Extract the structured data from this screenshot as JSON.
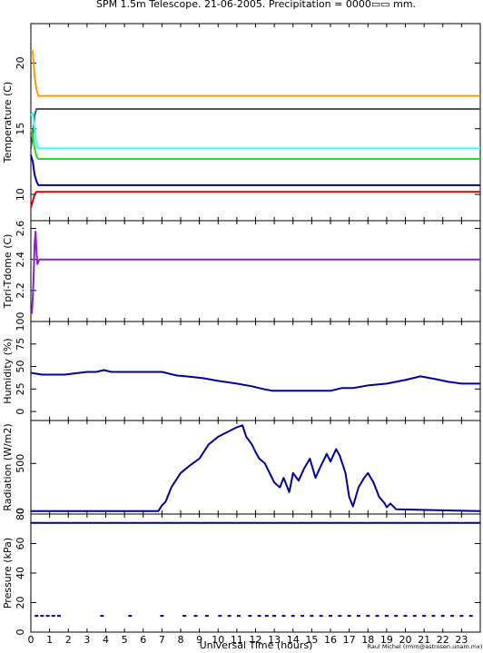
{
  "title": "SPM 1.5m Telescope. 21-06-2005. Precipitation = 0000▭▭ mm.",
  "credit": "Raul Michel (rmm@astrosen.unam.mx)",
  "colors": {
    "orange": "#ff9900",
    "gray": "#555555",
    "cyan": "#33ffff",
    "green": "#22dd22",
    "blue": "#0000aa",
    "red": "#dd0000",
    "purple": "#8822cc",
    "navy": "#000099"
  },
  "chart_data": [
    {
      "type": "line",
      "ylabel": "Temperature (C)",
      "xlim": [
        0,
        24
      ],
      "ylim": [
        8,
        23
      ],
      "yticks": [
        10,
        15,
        20
      ],
      "series": [
        {
          "color": "orange",
          "x": [
            0.0,
            0.1,
            0.2,
            0.3,
            0.4,
            24
          ],
          "values": [
            21.0,
            20.9,
            19.0,
            18.0,
            17.5,
            17.5
          ]
        },
        {
          "color": "gray",
          "x": [
            0.0,
            0.1,
            0.2,
            0.3,
            0.4,
            24
          ],
          "values": [
            13.5,
            14.5,
            16.0,
            16.5,
            16.5,
            16.5
          ]
        },
        {
          "color": "cyan",
          "x": [
            0.0,
            0.1,
            0.2,
            0.3,
            0.4,
            24
          ],
          "values": [
            16.0,
            16.2,
            15.0,
            13.8,
            13.5,
            13.5
          ]
        },
        {
          "color": "green",
          "x": [
            0.0,
            0.1,
            0.2,
            0.3,
            0.4,
            24
          ],
          "values": [
            15.0,
            14.5,
            13.5,
            12.9,
            12.7,
            12.7
          ]
        },
        {
          "color": "blue",
          "x": [
            0.0,
            0.1,
            0.2,
            0.3,
            0.4,
            24
          ],
          "values": [
            13.0,
            12.5,
            11.5,
            11.0,
            10.7,
            10.7
          ]
        },
        {
          "color": "red",
          "x": [
            0.0,
            0.1,
            0.2,
            0.3,
            0.4,
            24
          ],
          "values": [
            9.0,
            9.5,
            10.0,
            10.2,
            10.2,
            10.2
          ]
        }
      ]
    },
    {
      "type": "line",
      "ylabel": "Tpri-Tdome (C)",
      "xlim": [
        0,
        24
      ],
      "ylim": [
        2.0,
        2.65
      ],
      "yticks": [
        2.2,
        2.4,
        2.6
      ],
      "series": [
        {
          "color": "purple",
          "x": [
            0.05,
            0.1,
            0.15,
            0.2,
            0.25,
            0.3,
            0.35,
            0.45,
            24
          ],
          "values": [
            2.05,
            2.15,
            2.3,
            2.5,
            2.58,
            2.45,
            2.37,
            2.4,
            2.4
          ]
        }
      ]
    },
    {
      "type": "line",
      "ylabel": "Humidity (%)",
      "xlim": [
        0,
        24
      ],
      "ylim": [
        -10,
        100
      ],
      "yticks": [
        0,
        25,
        50,
        75,
        100
      ],
      "series": [
        {
          "color": "navy",
          "x": [
            0,
            0.6,
            1.8,
            3.0,
            3.5,
            3.9,
            4.3,
            5.5,
            7.0,
            7.8,
            8.3,
            9.2,
            10.0,
            11.0,
            11.8,
            12.4,
            12.9,
            13.8,
            15.0,
            16.0,
            16.6,
            17.2,
            18.0,
            19.0,
            20.0,
            20.8,
            21.6,
            22.3,
            23.0,
            24
          ],
          "values": [
            43,
            41,
            41,
            44,
            44,
            46,
            44,
            44,
            44,
            40,
            39,
            37,
            34,
            31,
            28,
            25,
            23,
            23,
            23,
            23,
            26,
            26,
            29,
            31,
            35,
            39,
            36,
            33,
            31,
            31
          ]
        }
      ]
    },
    {
      "type": "line",
      "ylabel": "Radiation (W/m2)",
      "xlim": [
        0,
        24
      ],
      "ylim": [
        -30,
        950
      ],
      "yticks": [
        0,
        500
      ],
      "series": [
        {
          "color": "navy",
          "x": [
            0,
            6.8,
            7.0,
            7.2,
            7.5,
            8.0,
            8.5,
            9.0,
            9.5,
            10.0,
            10.5,
            11.0,
            11.3,
            11.5,
            11.8,
            12.0,
            12.2,
            12.5,
            12.7,
            13.0,
            13.3,
            13.5,
            13.8,
            14.0,
            14.3,
            14.6,
            14.9,
            15.2,
            15.5,
            15.8,
            16.0,
            16.3,
            16.5,
            16.8,
            17.0,
            17.2,
            17.5,
            17.8,
            18.0,
            18.3,
            18.6,
            18.9,
            19.0,
            19.2,
            19.5,
            24
          ],
          "values": [
            0,
            0,
            60,
            100,
            250,
            400,
            480,
            550,
            700,
            780,
            830,
            880,
            900,
            780,
            700,
            620,
            550,
            500,
            420,
            300,
            250,
            350,
            200,
            400,
            320,
            450,
            550,
            350,
            480,
            600,
            520,
            650,
            580,
            400,
            150,
            50,
            250,
            350,
            400,
            300,
            150,
            80,
            40,
            80,
            20,
            0
          ]
        }
      ]
    },
    {
      "type": "scatter",
      "ylabel": "Pressure (kPa)",
      "xlim": [
        0,
        24
      ],
      "ylim": [
        0,
        80
      ],
      "yticks": [
        0,
        20,
        40,
        60,
        80
      ],
      "xlabel": "Universal Time (hours)",
      "xticks": [
        0,
        1,
        2,
        3,
        4,
        5,
        6,
        7,
        8,
        9,
        10,
        11,
        12,
        13,
        14,
        15,
        16,
        17,
        18,
        19,
        20,
        21,
        22,
        23
      ],
      "series": [
        {
          "color": "navy",
          "x": [
            0,
            24
          ],
          "values": [
            74,
            74
          ]
        },
        {
          "color": "navy",
          "x": [
            0.3,
            0.6,
            0.9,
            1.2,
            1.5,
            3.8,
            5.3,
            7.0,
            8.2,
            8.8,
            9.4,
            10.1,
            10.6,
            11.1,
            11.7,
            12.2,
            12.6,
            13.0,
            13.5,
            14.0,
            14.5,
            15.0,
            15.5,
            16.0,
            16.5,
            17.0,
            17.5,
            18.0,
            18.5,
            19.0,
            19.5,
            20.0,
            20.5,
            21.0,
            21.5,
            22.0,
            22.5,
            23.0,
            23.5
          ],
          "values": [
            11,
            11,
            11,
            11,
            11,
            11,
            11,
            11,
            11,
            11,
            11,
            11,
            11,
            11,
            11,
            11,
            11,
            11,
            11,
            11,
            11,
            11,
            11,
            11,
            11,
            11,
            11,
            11,
            11,
            11,
            11,
            11,
            11,
            11,
            11,
            11,
            11,
            11,
            11
          ]
        }
      ]
    }
  ]
}
